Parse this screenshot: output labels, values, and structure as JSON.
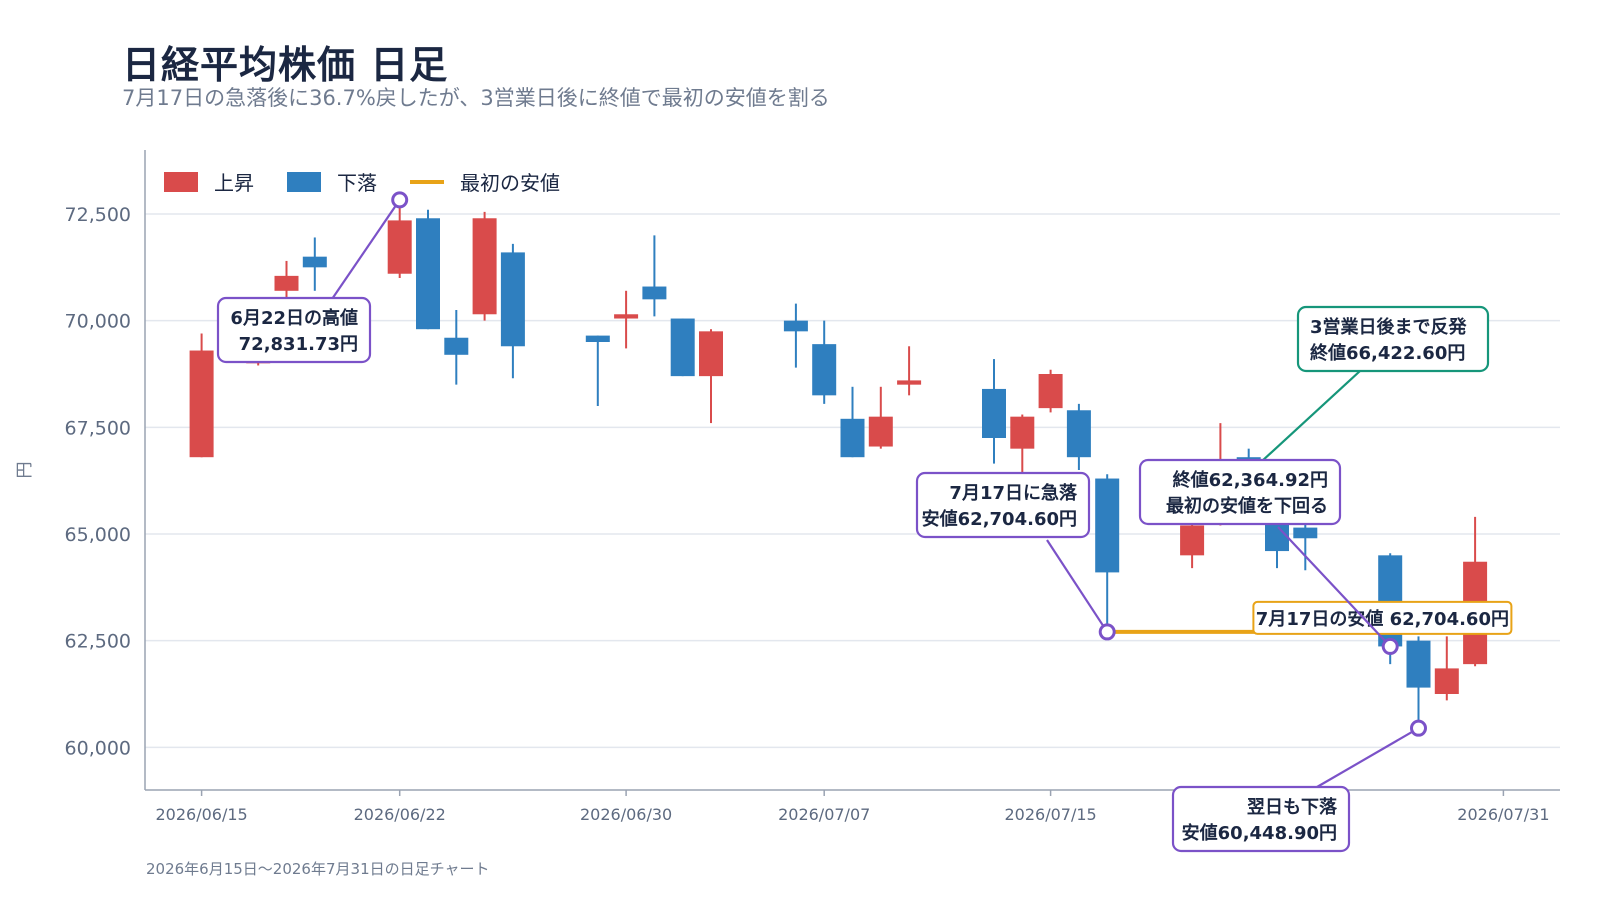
{
  "header": {
    "title": "日経平均株価 日足",
    "subtitle": "7月17日の急落後に36.7%戻したが、3営業日後に終値で最初の安値を割る"
  },
  "footnote": "2026年6月15日〜2026年7月31日の日足チャート",
  "colors": {
    "up": "#d94b4b",
    "down": "#2f7fbf",
    "first_low_line": "#e8a317",
    "annotation_purple": "#7b52c8",
    "annotation_green": "#16967a",
    "grid": "#e3e7ee",
    "axis": "#9aa3b2"
  },
  "legend": {
    "up": "上昇",
    "down": "下落",
    "first_low": "最初の安値"
  },
  "chart_data": {
    "type": "candlestick",
    "ylabel": "円",
    "ylim": [
      59000,
      74000
    ],
    "yticks": [
      60000,
      62500,
      65000,
      67500,
      70000,
      72500
    ],
    "ytick_labels": [
      "60,000",
      "62,500",
      "65,000",
      "67,500",
      "70,000",
      "72,500"
    ],
    "xtick_labels": [
      {
        "date": "2026-06-15",
        "label": "2026/06/15"
      },
      {
        "date": "2026-06-22",
        "label": "2026/06/22"
      },
      {
        "date": "2026-06-30",
        "label": "2026/06/30"
      },
      {
        "date": "2026-07-07",
        "label": "2026/07/07"
      },
      {
        "date": "2026-07-15",
        "label": "2026/07/15"
      },
      {
        "date": "2026-07-31",
        "label": "2026/07/31"
      }
    ],
    "candles": [
      {
        "date": "2026-06-15",
        "open": 66800,
        "high": 69700,
        "low": 66800,
        "close": 69300
      },
      {
        "date": "2026-06-16",
        "open": 69300,
        "high": 69600,
        "low": 69100,
        "close": 69400
      },
      {
        "date": "2026-06-17",
        "open": 69000,
        "high": 69700,
        "low": 68950,
        "close": 69100
      },
      {
        "date": "2026-06-18",
        "open": 70700,
        "high": 71400,
        "low": 70500,
        "close": 71050
      },
      {
        "date": "2026-06-19",
        "open": 71500,
        "high": 71950,
        "low": 70700,
        "close": 71250
      },
      {
        "date": "2026-06-22",
        "open": 71100,
        "high": 72831.73,
        "low": 71000,
        "close": 72350
      },
      {
        "date": "2026-06-23",
        "open": 72400,
        "high": 72600,
        "low": 69800,
        "close": 69800
      },
      {
        "date": "2026-06-24",
        "open": 69600,
        "high": 70250,
        "low": 68500,
        "close": 69200
      },
      {
        "date": "2026-06-25",
        "open": 70150,
        "high": 72550,
        "low": 70000,
        "close": 72400
      },
      {
        "date": "2026-06-26",
        "open": 71600,
        "high": 71800,
        "low": 68650,
        "close": 69400
      },
      {
        "date": "2026-06-29",
        "open": 69650,
        "high": 69650,
        "low": 68000,
        "close": 69500
      },
      {
        "date": "2026-06-30",
        "open": 70050,
        "high": 70700,
        "low": 69350,
        "close": 70150
      },
      {
        "date": "2026-07-01",
        "open": 70800,
        "high": 72000,
        "low": 70100,
        "close": 70500
      },
      {
        "date": "2026-07-02",
        "open": 70050,
        "high": 70050,
        "low": 68700,
        "close": 68700
      },
      {
        "date": "2026-07-03",
        "open": 68700,
        "high": 69800,
        "low": 67600,
        "close": 69750
      },
      {
        "date": "2026-07-06",
        "open": 70000,
        "high": 70400,
        "low": 68900,
        "close": 69750
      },
      {
        "date": "2026-07-07",
        "open": 69450,
        "high": 70000,
        "low": 68050,
        "close": 68250
      },
      {
        "date": "2026-07-08",
        "open": 67700,
        "high": 68450,
        "low": 66800,
        "close": 66800
      },
      {
        "date": "2026-07-09",
        "open": 67050,
        "high": 68450,
        "low": 67000,
        "close": 67750
      },
      {
        "date": "2026-07-10",
        "open": 68500,
        "high": 69400,
        "low": 68250,
        "close": 68600
      },
      {
        "date": "2026-07-13",
        "open": 68400,
        "high": 69100,
        "low": 66650,
        "close": 67250
      },
      {
        "date": "2026-07-14",
        "open": 67000,
        "high": 67800,
        "low": 66450,
        "close": 67750
      },
      {
        "date": "2026-07-15",
        "open": 67950,
        "high": 68850,
        "low": 67850,
        "close": 68750
      },
      {
        "date": "2026-07-16",
        "open": 67900,
        "high": 68050,
        "low": 66500,
        "close": 66800
      },
      {
        "date": "2026-07-17",
        "open": 66300,
        "high": 66400,
        "low": 62704.6,
        "close": 64100
      },
      {
        "date": "2026-07-20",
        "open": 64500,
        "high": 65600,
        "low": 64200,
        "close": 65200
      },
      {
        "date": "2026-07-21",
        "open": 65500,
        "high": 67600,
        "low": 65200,
        "close": 66300
      },
      {
        "date": "2026-07-22",
        "open": 66800,
        "high": 67000,
        "low": 66300,
        "close": 66422.6
      },
      {
        "date": "2026-07-23",
        "open": 65600,
        "high": 65800,
        "low": 64200,
        "close": 64600
      },
      {
        "date": "2026-07-24",
        "open": 65150,
        "high": 65500,
        "low": 64150,
        "close": 64900
      },
      {
        "date": "2026-07-27",
        "open": 64500,
        "high": 64550,
        "low": 61950,
        "close": 62364.92
      },
      {
        "date": "2026-07-28",
        "open": 62500,
        "high": 62600,
        "low": 60448.9,
        "close": 61400
      },
      {
        "date": "2026-07-29",
        "open": 61250,
        "high": 62600,
        "low": 61100,
        "close": 61850
      },
      {
        "date": "2026-07-30",
        "open": 61950,
        "high": 65400,
        "low": 61900,
        "close": 64350
      }
    ],
    "first_low": {
      "value": 62704.6,
      "from": "2026-07-17",
      "to": "2026-07-31",
      "label": "7月17日の安値 62,704.60円"
    },
    "annotations": [
      {
        "id": "high",
        "lines": [
          "6月22日の高値",
          "72,831.73円"
        ],
        "date": "2026-06-22",
        "value": 72831.73,
        "color": "purple"
      },
      {
        "id": "crash",
        "lines": [
          "7月17日に急落",
          "安値62,704.60円"
        ],
        "date": "2026-07-17",
        "value": 62704.6,
        "color": "purple"
      },
      {
        "id": "rebound",
        "lines": [
          "3営業日後まで反発",
          "終値66,422.60円"
        ],
        "date": "2026-07-22",
        "value": 66422.6,
        "color": "green"
      },
      {
        "id": "break",
        "lines": [
          "終値62,364.92円",
          "最初の安値を下回る"
        ],
        "date": "2026-07-27",
        "value": 62364.92,
        "color": "purple"
      },
      {
        "id": "nextday",
        "lines": [
          "翌日も下落",
          "安値60,448.90円"
        ],
        "date": "2026-07-28",
        "value": 60448.9,
        "color": "purple"
      }
    ]
  }
}
